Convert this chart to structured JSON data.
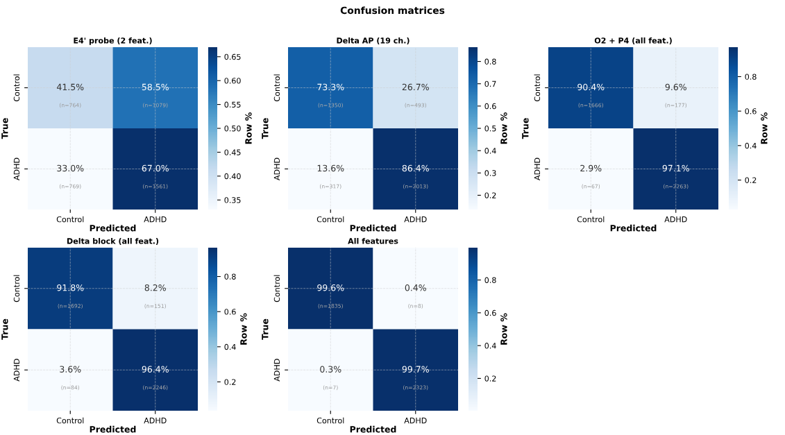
{
  "chart_data": [
    {
      "type": "heatmap",
      "title": "E4' probe (2 feat.)",
      "xlabel": "Predicted",
      "ylabel": "True",
      "clabel": "Row %",
      "categories": [
        "Control",
        "ADHD"
      ],
      "y_categories": [
        "Control",
        "ADHD"
      ],
      "cells": [
        [
          0.415,
          0.585
        ],
        [
          0.33,
          0.67
        ]
      ],
      "cell_labels": [
        [
          "41.5%\n(n=764)",
          "58.5%\n(n=1079)"
        ],
        [
          "33.0%\n(n=769)",
          "67.0%\n(n=1561)"
        ]
      ],
      "clim": [
        0.33,
        0.67
      ],
      "cticks": [
        0.35,
        {
          "value": 0.4,
          "label": "0.40"
        },
        0.45,
        {
          "value": 0.5,
          "label": "0.50"
        },
        0.55,
        {
          "value": 0.6,
          "label": "0.60"
        },
        0.65
      ],
      "grid": true
    },
    {
      "type": "heatmap",
      "title": "Delta AP (19 ch.)",
      "xlabel": "Predicted",
      "ylabel": "True",
      "clabel": "Row %",
      "categories": [
        "Control",
        "ADHD"
      ],
      "y_categories": [
        "Control",
        "ADHD"
      ],
      "cells": [
        [
          0.733,
          0.267
        ],
        [
          0.136,
          0.864
        ]
      ],
      "cell_labels": [
        [
          "73.3%\n(n=1350)",
          "26.7%\n(n=493)"
        ],
        [
          "13.6%\n(n=317)",
          "86.4%\n(n=2013)"
        ]
      ],
      "clim": [
        0.136,
        0.864
      ],
      "cticks": [
        0.2,
        0.3,
        0.4,
        0.5,
        0.6,
        0.7,
        0.8
      ],
      "grid": true
    },
    {
      "type": "heatmap",
      "title": "O2 + P4 (all feat.)",
      "xlabel": "Predicted",
      "ylabel": "True",
      "clabel": "Row %",
      "categories": [
        "Control",
        "ADHD"
      ],
      "y_categories": [
        "Control",
        "ADHD"
      ],
      "cells": [
        [
          0.904,
          0.096
        ],
        [
          0.029,
          0.971
        ]
      ],
      "cell_labels": [
        [
          "90.4%\n(n=1666)",
          "9.6%\n(n=177)"
        ],
        [
          "2.9%\n(n=67)",
          "97.1%\n(n=2263)"
        ]
      ],
      "clim": [
        0.029,
        0.971
      ],
      "cticks": [
        0.2,
        0.4,
        0.6,
        0.8
      ],
      "grid": true
    },
    {
      "type": "heatmap",
      "title": "Delta block (all feat.)",
      "xlabel": "Predicted",
      "ylabel": "True",
      "clabel": "Row %",
      "categories": [
        "Control",
        "ADHD"
      ],
      "y_categories": [
        "Control",
        "ADHD"
      ],
      "cells": [
        [
          0.918,
          0.082
        ],
        [
          0.036,
          0.964
        ]
      ],
      "cell_labels": [
        [
          "91.8%\n(n=1692)",
          "8.2%\n(n=151)"
        ],
        [
          "3.6%\n(n=84)",
          "96.4%\n(n=2246)"
        ]
      ],
      "clim": [
        0.036,
        0.964
      ],
      "cticks": [
        0.2,
        0.4,
        0.6,
        0.8
      ],
      "grid": true
    },
    {
      "type": "heatmap",
      "title": "All features",
      "xlabel": "Predicted",
      "ylabel": "True",
      "clabel": "Row %",
      "categories": [
        "Control",
        "ADHD"
      ],
      "y_categories": [
        "Control",
        "ADHD"
      ],
      "cells": [
        [
          0.996,
          0.004
        ],
        [
          0.003,
          0.997
        ]
      ],
      "cell_labels": [
        [
          "99.6%\n(n=1835)",
          "0.4%\n(n=8)"
        ],
        [
          "0.3%\n(n=7)",
          "99.7%\n(n=2323)"
        ]
      ],
      "clim": [
        0.003,
        0.997
      ],
      "cticks": [
        0.2,
        0.4,
        0.6,
        0.8
      ],
      "grid": true,
      "annotations": [
        "Confusion matrices"
      ]
    }
  ]
}
